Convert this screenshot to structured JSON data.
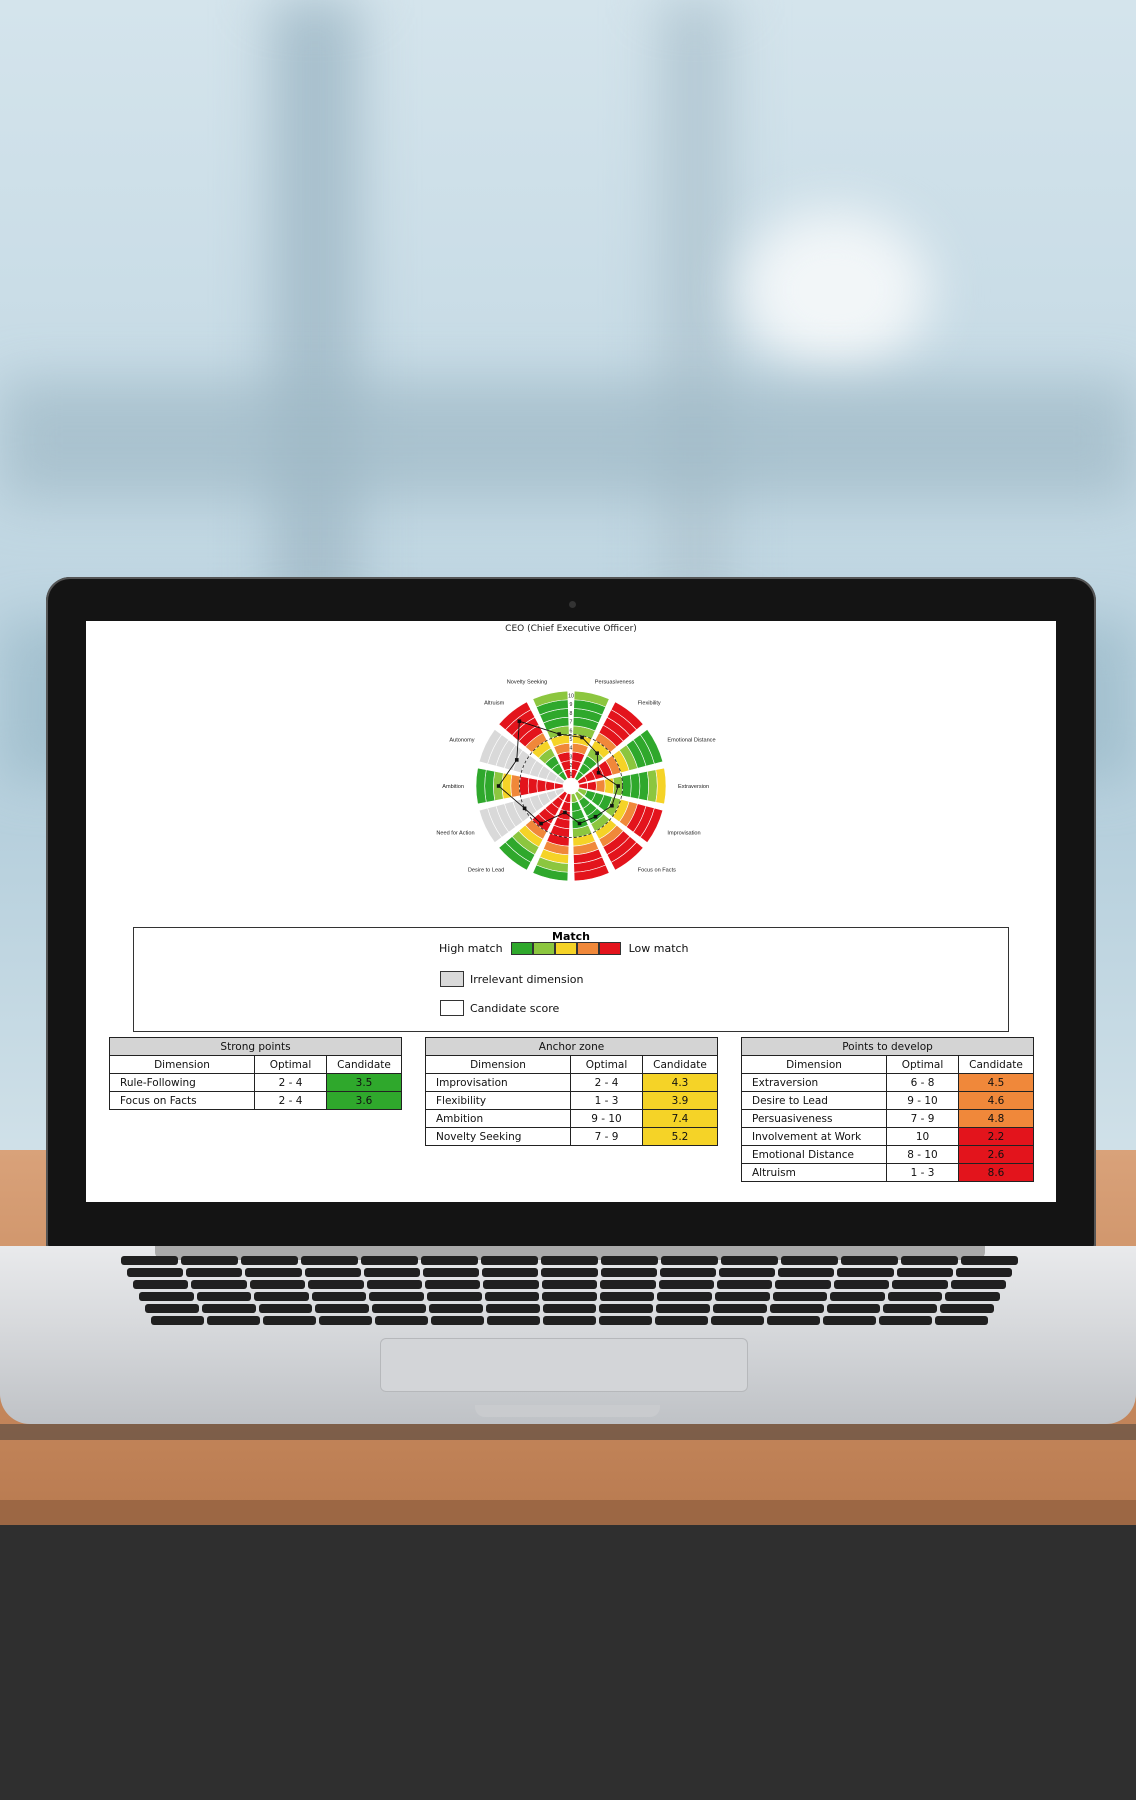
{
  "chart_data": {
    "type": "radar",
    "title": "CEO (Chief Executive Officer)",
    "scale_labels": [
      "10",
      "9",
      "8",
      "7",
      "6",
      "5",
      "4",
      "3",
      "2",
      "1"
    ],
    "dimensions": [
      {
        "name": "Persuasiveness",
        "candidate": 4.8,
        "optimal": [
          7,
          9
        ]
      },
      {
        "name": "Flexibility",
        "candidate": 3.9,
        "optimal": [
          1,
          3
        ]
      },
      {
        "name": "Emotional Distance",
        "candidate": 2.6,
        "optimal": [
          8,
          10
        ]
      },
      {
        "name": "Extraversion",
        "candidate": 4.5,
        "optimal": [
          6,
          8
        ]
      },
      {
        "name": "Improvisation",
        "candidate": 4.3,
        "optimal": [
          2,
          4
        ]
      },
      {
        "name": "Focus on Facts",
        "candidate": 3.6,
        "optimal": [
          2,
          4
        ]
      },
      {
        "name": "Rule-Following",
        "candidate": 3.5,
        "optimal": [
          2,
          4
        ]
      },
      {
        "name": "Involvement at Work",
        "candidate": 2.2,
        "optimal": [
          10,
          10
        ]
      },
      {
        "name": "Desire to Lead",
        "candidate": 4.6,
        "optimal": [
          9,
          10
        ]
      },
      {
        "name": "Need for Action",
        "candidate": 5.0,
        "irrelevant": true
      },
      {
        "name": "Ambition",
        "candidate": 7.4,
        "optimal": [
          9,
          10
        ]
      },
      {
        "name": "Autonomy",
        "candidate": 6.0,
        "irrelevant": true
      },
      {
        "name": "Altruism",
        "candidate": 8.6,
        "optimal": [
          1,
          3
        ]
      },
      {
        "name": "Novelty Seeking",
        "candidate": 5.2,
        "optimal": [
          7,
          9
        ]
      }
    ],
    "reference_circle": 5
  },
  "legend": {
    "title": "Match",
    "high_label": "High match",
    "low_label": "Low match",
    "scale_colors": [
      "#2fa82c",
      "#8cc63f",
      "#f5d327",
      "#f0883a",
      "#e3141c"
    ],
    "irrelevant_label": "Irrelevant dimension",
    "candidate_label": "Candidate score",
    "irrelevant_color": "#d9d9d9"
  },
  "tables": {
    "strong": {
      "title": "Strong points",
      "headers": [
        "Dimension",
        "Optimal",
        "Candidate"
      ],
      "rows": [
        {
          "dimension": "Rule-Following",
          "optimal": "2 - 4",
          "candidate": "3.5",
          "color": "#2fa82c"
        },
        {
          "dimension": "Focus on Facts",
          "optimal": "2 - 4",
          "candidate": "3.6",
          "color": "#2fa82c"
        }
      ]
    },
    "anchor": {
      "title": "Anchor zone",
      "headers": [
        "Dimension",
        "Optimal",
        "Candidate"
      ],
      "rows": [
        {
          "dimension": "Improvisation",
          "optimal": "2 - 4",
          "candidate": "4.3",
          "color": "#f5d327"
        },
        {
          "dimension": "Flexibility",
          "optimal": "1 - 3",
          "candidate": "3.9",
          "color": "#f5d327"
        },
        {
          "dimension": "Ambition",
          "optimal": "9 - 10",
          "candidate": "7.4",
          "color": "#f5d327"
        },
        {
          "dimension": "Novelty Seeking",
          "optimal": "7 - 9",
          "candidate": "5.2",
          "color": "#f5d327"
        }
      ]
    },
    "develop": {
      "title": "Points to develop",
      "headers": [
        "Dimension",
        "Optimal",
        "Candidate"
      ],
      "rows": [
        {
          "dimension": "Extraversion",
          "optimal": "6 - 8",
          "candidate": "4.5",
          "color": "#f0883a"
        },
        {
          "dimension": "Desire to Lead",
          "optimal": "9 - 10",
          "candidate": "4.6",
          "color": "#f0883a"
        },
        {
          "dimension": "Persuasiveness",
          "optimal": "7 - 9",
          "candidate": "4.8",
          "color": "#f0883a"
        },
        {
          "dimension": "Involvement at Work",
          "optimal": "10",
          "candidate": "2.2",
          "color": "#e3141c"
        },
        {
          "dimension": "Emotional Distance",
          "optimal": "8 - 10",
          "candidate": "2.6",
          "color": "#e3141c"
        },
        {
          "dimension": "Altruism",
          "optimal": "1 - 3",
          "candidate": "8.6",
          "color": "#e3141c"
        }
      ]
    }
  }
}
